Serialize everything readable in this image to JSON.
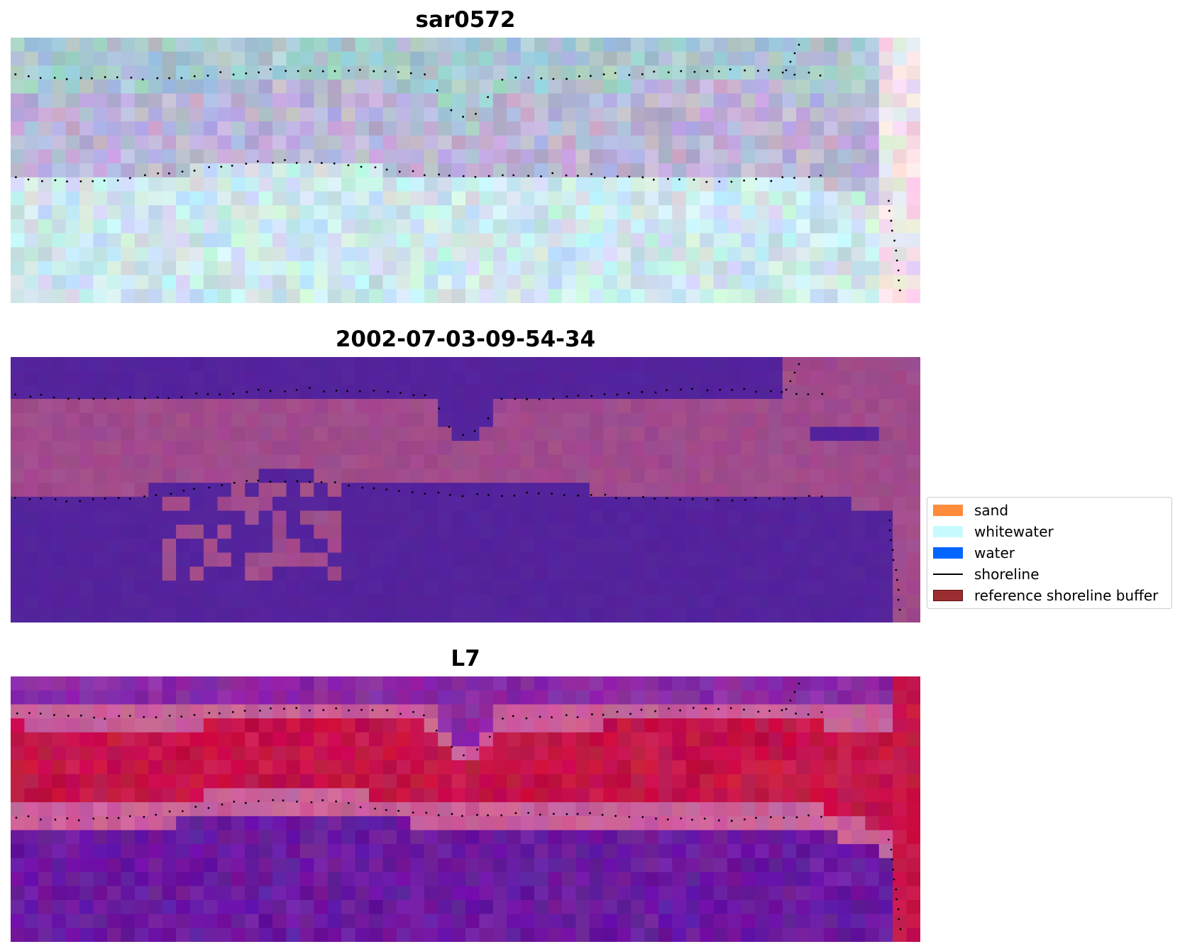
{
  "panels": [
    {
      "title": "sar0572",
      "style": "rgb"
    },
    {
      "title": "2002-07-03-09-54-34",
      "style": "classified"
    },
    {
      "title": "L7",
      "style": "ndwi"
    }
  ],
  "legend": {
    "items": [
      {
        "label": "sand",
        "color": "#ff8c3a",
        "kind": "patch"
      },
      {
        "label": "whitewater",
        "color": "#c8fbff",
        "kind": "patch"
      },
      {
        "label": "water",
        "color": "#0066ff",
        "kind": "patch"
      },
      {
        "label": "shoreline",
        "color": "#000000",
        "kind": "line"
      },
      {
        "label": "reference shoreline buffer",
        "color": "#9b2d30",
        "kind": "patch"
      }
    ]
  },
  "colors": {
    "classified_water": "#54239c",
    "classified_land": "#a04b8c",
    "ndwi_water": "#6a1aa0",
    "ndwi_land": "#c41448",
    "buffer_band": "#c8609a"
  }
}
